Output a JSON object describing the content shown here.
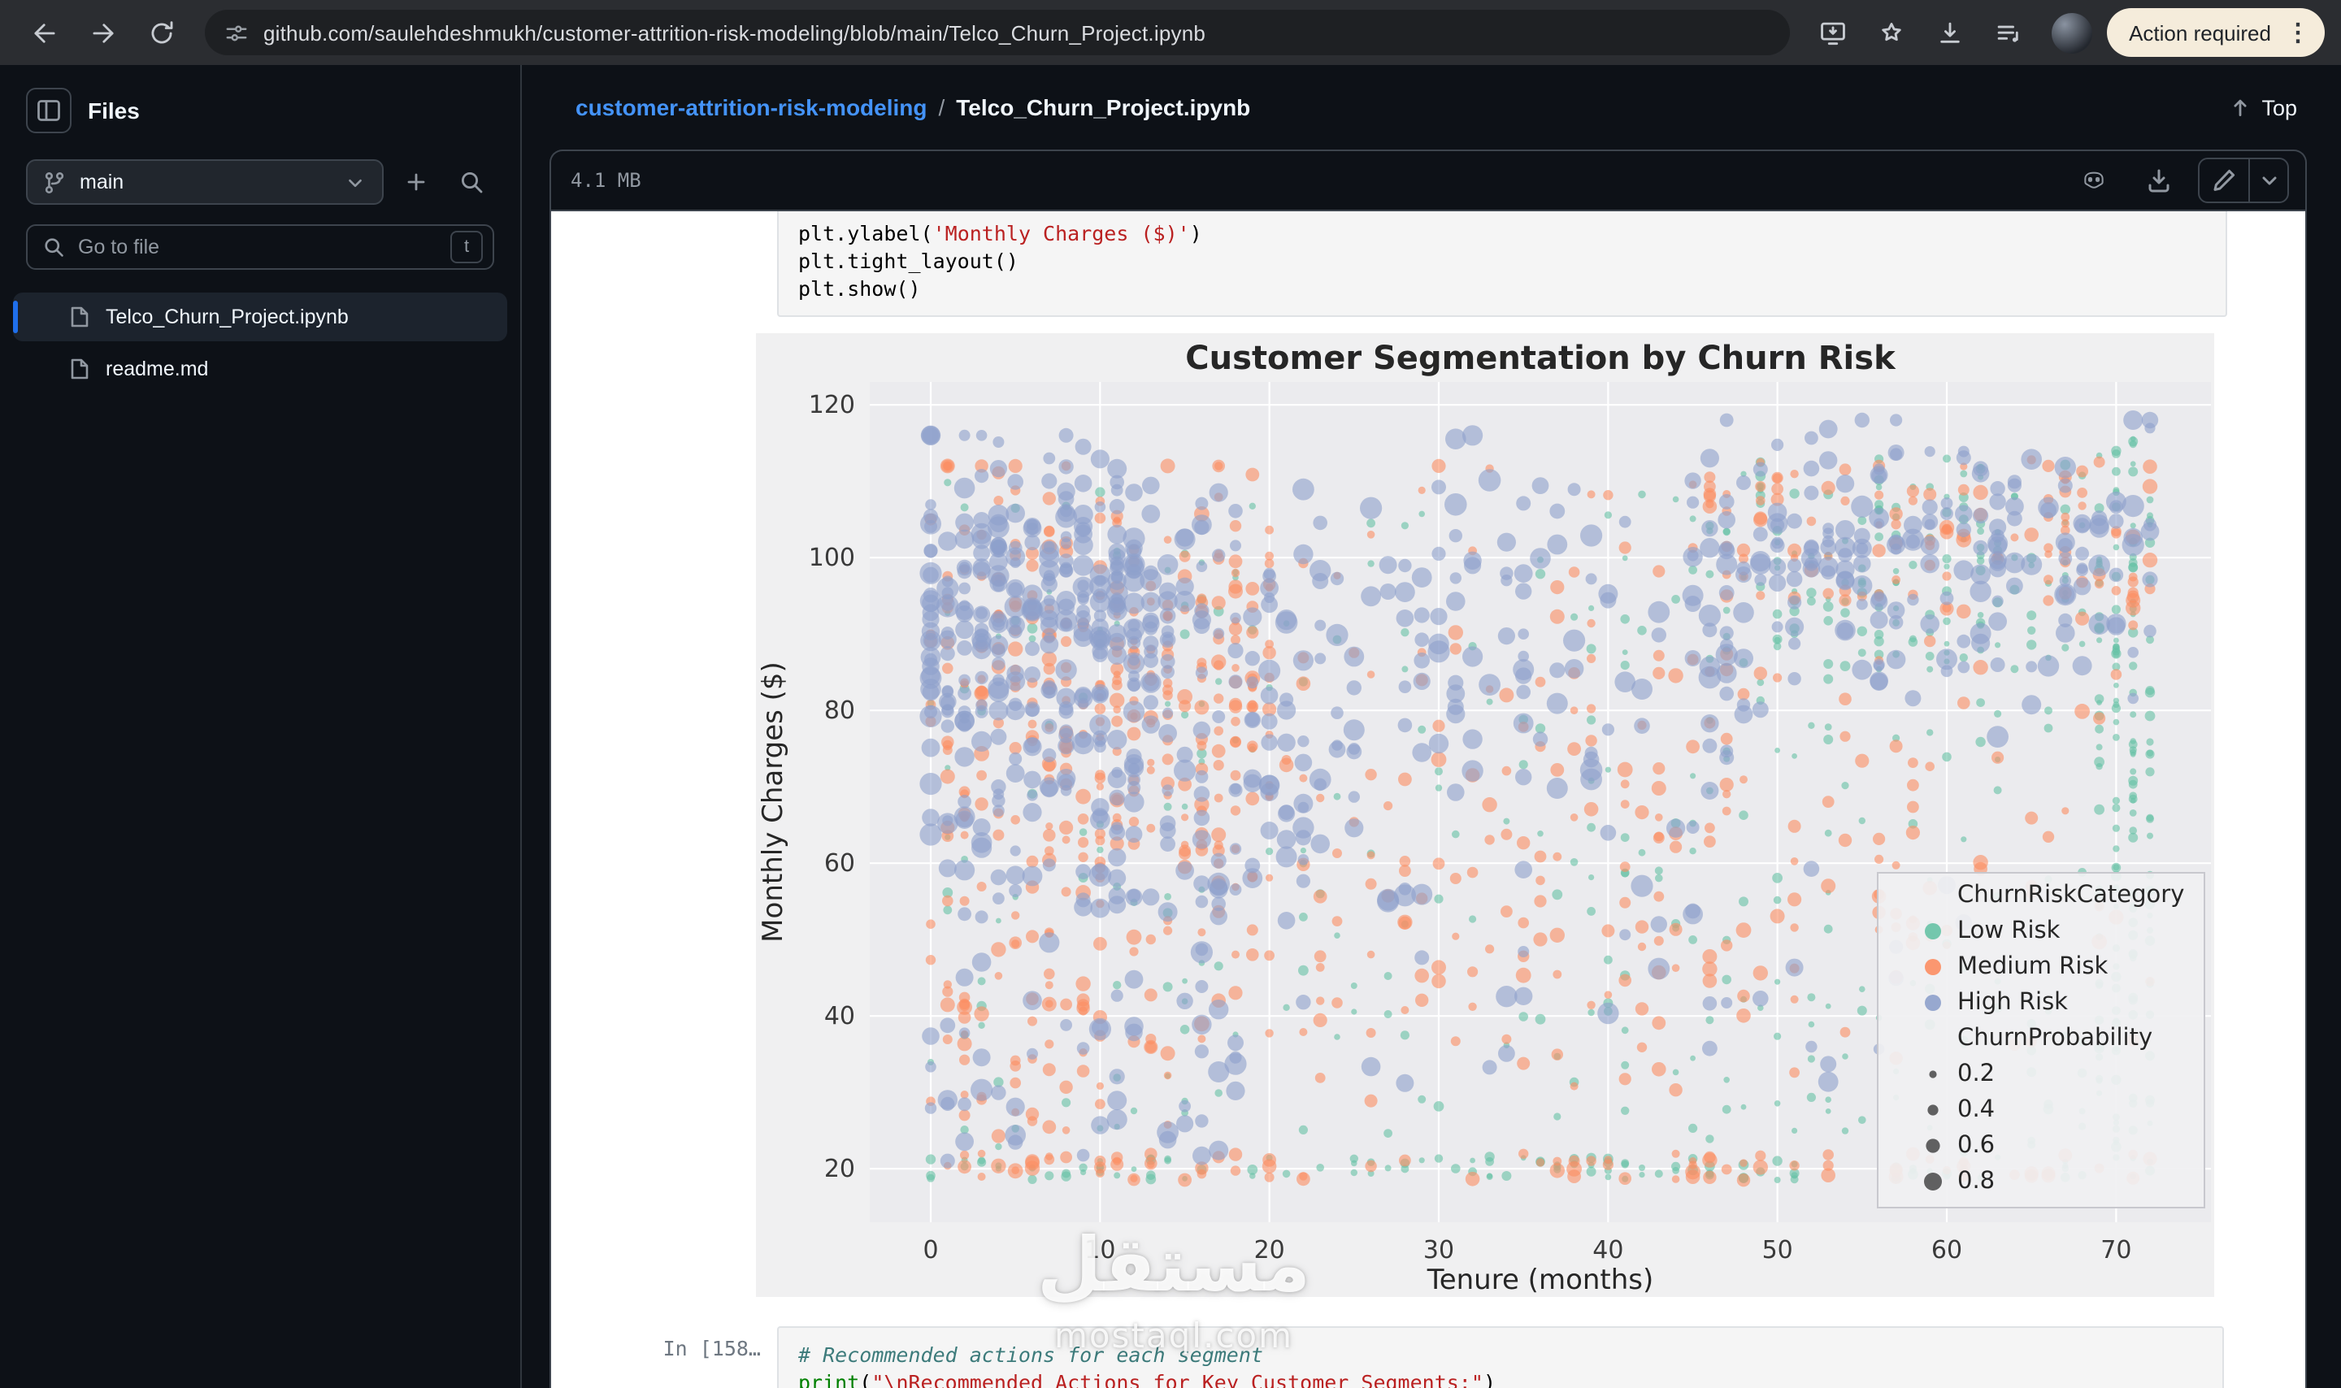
{
  "browser": {
    "url": "github.com/saulehdeshmukh/customer-attrition-risk-modeling/blob/main/Telco_Churn_Project.ipynb",
    "action_button": "Action required",
    "menu_glyph": "⋮"
  },
  "sidebar": {
    "title": "Files",
    "branch": "main",
    "search_placeholder": "Go to file",
    "search_shortcut": "t",
    "files": [
      {
        "name": "Telco_Churn_Project.ipynb",
        "selected": true
      },
      {
        "name": "readme.md",
        "selected": false
      }
    ]
  },
  "header": {
    "repo": "customer-attrition-risk-modeling",
    "separator": "/",
    "file": "Telco_Churn_Project.ipynb",
    "top_label": "Top"
  },
  "toolbar": {
    "file_size": "4.1 MB"
  },
  "notebook": {
    "cell_top": {
      "lines": [
        [
          {
            "t": "plt.ylabel(",
            "c": "p"
          },
          {
            "t": "'Monthly Charges ($)'",
            "c": "s"
          },
          {
            "t": ")",
            "c": "p"
          }
        ],
        [
          {
            "t": "plt.tight_layout()",
            "c": "p"
          }
        ],
        [
          {
            "t": "plt.show()",
            "c": "p"
          }
        ]
      ]
    },
    "cell_bottom": {
      "prompt": "In [158…",
      "lines": [
        [
          {
            "t": "# Recommended actions for each segment",
            "c": "cm"
          }
        ],
        [
          {
            "t": "print",
            "c": "kw"
          },
          {
            "t": "(",
            "c": "p"
          },
          {
            "t": "\"\\nRecommended Actions for Key Customer Segments:\"",
            "c": "s"
          },
          {
            "t": ")",
            "c": "p"
          }
        ]
      ]
    },
    "watermark": {
      "word": "مستقل",
      "domain": "mostaql.com"
    }
  },
  "chart_data": {
    "type": "scatter",
    "title": "Customer Segmentation by Churn Risk",
    "xlabel": "Tenure (months)",
    "ylabel": "Monthly Charges ($)",
    "xlim": [
      -3.6,
      75.6
    ],
    "ylim": [
      13,
      123
    ],
    "xticks": [
      0,
      10,
      20,
      30,
      40,
      50,
      60,
      70
    ],
    "yticks": [
      20,
      40,
      60,
      80,
      100,
      120
    ],
    "grid": true,
    "figure_bg": "#f0f0f1",
    "axes_bg": "#ebebee",
    "grid_color": "#ffffff",
    "point_alpha": 0.6,
    "seed": 1337,
    "note": "Dense scatter reconstructed from density-parameter estimates read off the figure; tenure is integer months 0-72, charges span ~18-118 USD.",
    "legend": {
      "position": "lower right",
      "hue_title": "ChurnRiskCategory",
      "hue_entries": [
        {
          "label": "Low Risk",
          "color": "#66c2a5"
        },
        {
          "label": "Medium Risk",
          "color": "#fc8d62"
        },
        {
          "label": "High Risk",
          "color": "#8da0cb"
        }
      ],
      "size_title": "ChurnProbability",
      "size_entries": [
        {
          "label": "0.2",
          "r": 2.3
        },
        {
          "label": "0.4",
          "r": 3.3
        },
        {
          "label": "0.6",
          "r": 4.3
        },
        {
          "label": "0.8",
          "r": 5.5
        }
      ]
    },
    "series": [
      {
        "name": "Low Risk",
        "color": "#66c2a5",
        "n": 700,
        "r": [
          1.7,
          3.2
        ],
        "clusters": [
          {
            "w": 0.28,
            "t": [
              "u",
              38,
              72
            ],
            "c": [
              "u",
              20,
              112
            ]
          },
          {
            "w": 0.2,
            "t": [
              "u",
              0,
              38
            ],
            "c": [
              "u",
              20,
              110
            ]
          },
          {
            "w": 0.14,
            "t": [
              "u",
              0,
              72
            ],
            "c": [
              "u",
              18.5,
              21.5
            ]
          },
          {
            "w": 0.2,
            "t": [
              "u",
              69,
              72.4
            ],
            "c": [
              "u",
              20,
              116
            ]
          },
          {
            "w": 0.18,
            "t": [
              "u",
              45,
              72
            ],
            "c": [
              "u",
              85,
              113
            ]
          }
        ]
      },
      {
        "name": "Medium Risk",
        "color": "#fc8d62",
        "n": 820,
        "r": [
          2.3,
          4.7
        ],
        "clusters": [
          {
            "w": 0.3,
            "t": [
              "u",
              0,
              22
            ],
            "c": [
              "n",
              85,
              14,
              38,
              112
            ]
          },
          {
            "w": 0.26,
            "t": [
              "u",
              8,
              72
            ],
            "c": [
              "n",
              74,
              18,
              28,
              112
            ]
          },
          {
            "w": 0.15,
            "t": [
              "u",
              0,
              60
            ],
            "c": [
              "n",
              48,
              9,
              23,
              66
            ]
          },
          {
            "w": 0.1,
            "t": [
              "u",
              0,
              72
            ],
            "c": [
              "u",
              18.5,
              22
            ]
          },
          {
            "w": 0.13,
            "t": [
              "u",
              45,
              72
            ],
            "c": [
              "u",
              94,
              113
            ]
          },
          {
            "w": 0.06,
            "t": [
              "u",
              0,
              15
            ],
            "c": [
              "u",
              24,
              45
            ]
          }
        ]
      },
      {
        "name": "High Risk",
        "color": "#8da0cb",
        "n": 860,
        "r": [
          3.3,
          6.9
        ],
        "clusters": [
          {
            "w": 0.34,
            "t": [
              "n",
              6,
              5,
              0,
              20
            ],
            "c": [
              "n",
              93,
              11,
              52,
              116
            ]
          },
          {
            "w": 0.22,
            "t": [
              "u",
              10,
              48
            ],
            "c": [
              "n",
              90,
              13,
              52,
              116
            ]
          },
          {
            "w": 0.22,
            "t": [
              "u",
              45,
              72
            ],
            "c": [
              "n",
              100,
              9,
              68,
              118
            ]
          },
          {
            "w": 0.12,
            "t": [
              "u",
              0,
              25
            ],
            "c": [
              "n",
              62,
              12,
              30,
              82
            ]
          },
          {
            "w": 0.06,
            "t": [
              "u",
              0,
              18
            ],
            "c": [
              "u",
              21,
              45
            ]
          },
          {
            "w": 0.04,
            "t": [
              "u",
              25,
              62
            ],
            "c": [
              "u",
              30,
              60
            ]
          }
        ]
      }
    ]
  }
}
